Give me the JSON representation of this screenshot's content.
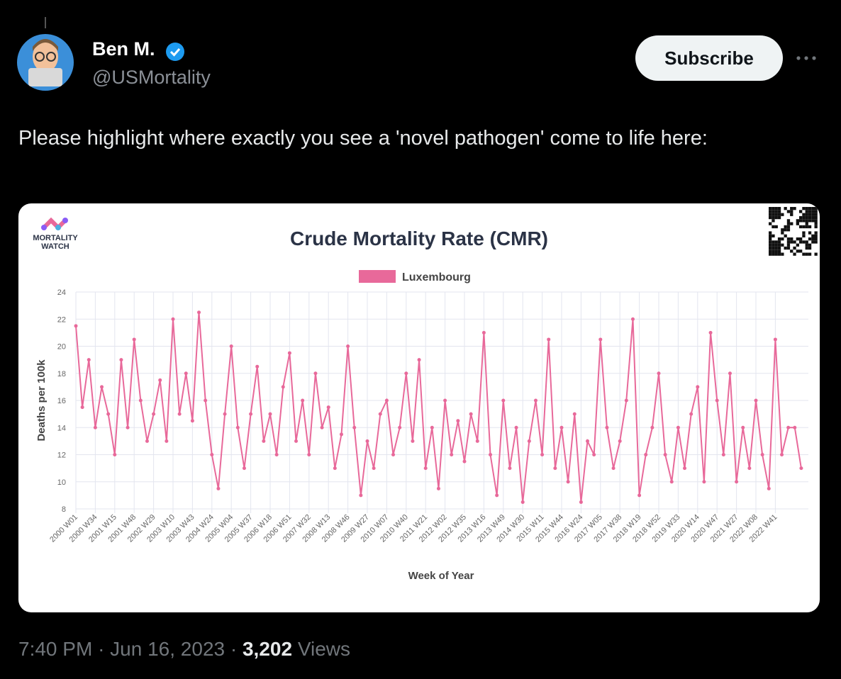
{
  "tweet": {
    "name": "Ben M.",
    "handle": "@USMortality",
    "button": "Subscribe",
    "text": "Please highlight where exactly you see a 'novel pathogen' come to life here:",
    "timestamp": "7:40 PM",
    "date": "Jun 16, 2023",
    "separator": "·",
    "views": "3,202",
    "views_label": "Views"
  },
  "card": {
    "logo_lines": [
      "MORTALITY",
      "WATCH"
    ]
  },
  "chart_data": {
    "type": "line",
    "title": "Crude Mortality Rate (CMR)",
    "x_label": "Week of Year",
    "y_label": "Deaths per 100k",
    "categories": [
      "2000 W01",
      null,
      null,
      "2000 W34",
      null,
      null,
      "2001 W15",
      null,
      null,
      "2001 W48",
      null,
      null,
      "2002 W29",
      null,
      null,
      "2003 W10",
      null,
      null,
      "2003 W43",
      null,
      null,
      "2004 W24",
      null,
      null,
      "2005 W04",
      null,
      null,
      "2005 W37",
      null,
      null,
      "2006 W18",
      null,
      null,
      "2006 W51",
      null,
      null,
      "2007 W32",
      null,
      null,
      "2008 W13",
      null,
      null,
      "2008 W46",
      null,
      null,
      "2009 W27",
      null,
      null,
      "2010 W07",
      null,
      null,
      "2010 W40",
      null,
      null,
      "2011 W21",
      null,
      null,
      "2012 W02",
      null,
      null,
      "2012 W35",
      null,
      null,
      "2013 W16",
      null,
      null,
      "2013 W49",
      null,
      null,
      "2014 W30",
      null,
      null,
      "2015 W11",
      null,
      null,
      "2015 W44",
      null,
      null,
      "2016 W24",
      null,
      null,
      "2017 W05",
      null,
      null,
      "2017 W38",
      null,
      null,
      "2018 W19",
      null,
      null,
      "2018 W52",
      null,
      null,
      "2019 W33",
      null,
      null,
      "2020 W14",
      null,
      null,
      "2020 W47",
      null,
      null,
      "2021 W27",
      null,
      null,
      "2022 W08",
      null,
      null,
      "2022 W41",
      null,
      null,
      null,
      null
    ],
    "series": [
      {
        "name": "Luxembourg",
        "color": "#e8699a",
        "values": [
          21.5,
          15.5,
          19,
          14,
          17,
          15,
          12,
          19,
          14,
          20.5,
          16,
          13,
          15,
          17.5,
          13,
          22,
          15,
          18,
          14.5,
          22.5,
          16,
          12,
          9.5,
          15,
          20,
          14,
          11,
          15,
          18.5,
          13,
          15,
          12,
          17,
          19.5,
          13,
          16,
          12,
          18,
          14,
          15.5,
          11,
          13.5,
          20,
          14,
          9,
          13,
          11,
          15,
          16,
          12,
          14,
          18,
          13,
          19,
          11,
          14,
          9.5,
          16,
          12,
          14.5,
          11.5,
          15,
          13,
          21,
          12,
          9,
          16,
          11,
          14,
          8.5,
          13,
          16,
          12,
          20.5,
          11,
          14,
          10,
          15,
          8.5,
          13,
          12,
          20.5,
          14,
          11,
          13,
          16,
          22,
          9,
          12,
          14,
          18,
          12,
          10,
          14,
          11,
          15,
          17,
          10,
          21,
          16,
          12,
          18,
          10,
          14,
          11,
          16,
          12,
          9.5,
          20.5,
          12,
          14,
          14,
          11
        ]
      }
    ],
    "ylim": [
      8,
      24
    ],
    "yticks": [
      8,
      10,
      12,
      14,
      16,
      18,
      20,
      22,
      24
    ],
    "grid": true,
    "legend": "top"
  }
}
